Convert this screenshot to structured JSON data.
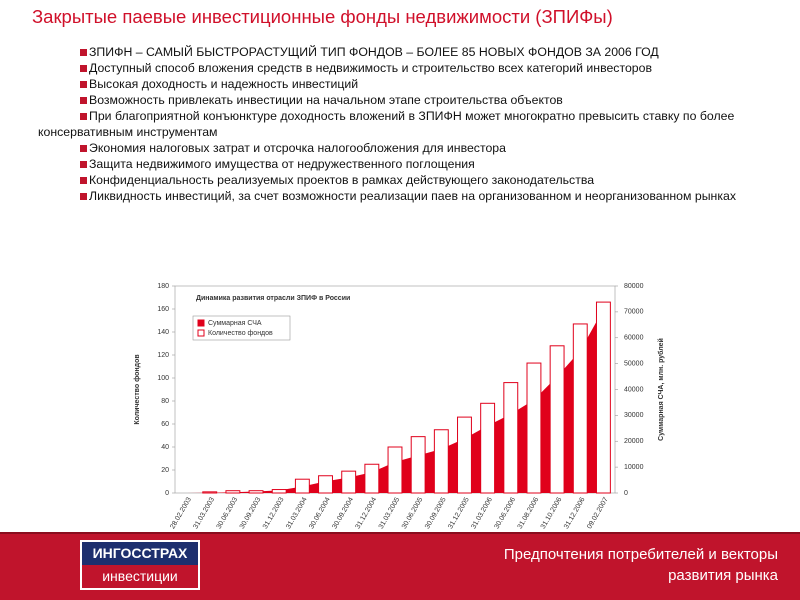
{
  "title": "Закрытые паевые инвестиционные фонды недвижимости (ЗПИФы)",
  "bullets": [
    "ЗПИФН – САМЫЙ БЫСТРОРАСТУЩИЙ ТИП ФОНДОВ – БОЛЕЕ 85 НОВЫХ ФОНДОВ ЗА 2006 ГОД",
    "Доступный способ вложения средств в недвижимость и строительство всех категорий инвесторов",
    "Высокая доходность и надежность инвестиций",
    "Возможность привлекать инвестиции на начальном этапе строительства объектов",
    "При благоприятной конъюнктуре доходность вложений в ЗПИФН может многократно превысить ставку по более консервативным инструментам",
    "Экономия налоговых затрат и отсрочка налогообложения для инвестора",
    "Защита недвижимого имущества от недружественного поглощения",
    "Конфиденциальность реализуемых проектов в рамках действующего законодательства",
    "Ликвидность инвестиций, за счет возможности реализации паев на организованном и неорганизованном рынках"
  ],
  "chart_data": {
    "type": "bar-area",
    "title": "Динамика развития отрасли ЗПИФ в России",
    "ylabel": "Количество фондов",
    "y2label": "Суммарная СЧА, млн. рублей",
    "categories": [
      "28.02.2003",
      "31.03.2003",
      "30.06.2003",
      "30.09.2003",
      "31.12.2003",
      "31.03.2004",
      "30.06.2004",
      "30.09.2004",
      "31.12.2004",
      "31.03.2005",
      "30.06.2005",
      "30.09.2005",
      "31.12.2005",
      "31.03.2006",
      "30.06.2006",
      "31.08.2006",
      "31.10.2006",
      "31.12.2006",
      "09.02.2007"
    ],
    "series": [
      {
        "name": "Суммарная СЧА",
        "color": "#e0001b",
        "axis": "y2",
        "kind": "area",
        "values": [
          0,
          100,
          300,
          600,
          1000,
          2500,
          4500,
          6000,
          8000,
          12000,
          14500,
          17000,
          21000,
          26000,
          30500,
          36000,
          45000,
          55000,
          71000
        ]
      },
      {
        "name": "Количество фондов",
        "color": "#e0001b",
        "kind": "bar",
        "values": [
          0,
          1,
          2,
          2,
          3,
          12,
          15,
          19,
          25,
          40,
          49,
          55,
          66,
          78,
          96,
          113,
          128,
          147,
          166
        ]
      }
    ],
    "ylim": [
      0,
      180
    ],
    "yticks": [
      0,
      20,
      40,
      60,
      80,
      100,
      120,
      140,
      160,
      180
    ],
    "y2lim": [
      0,
      80000
    ],
    "y2ticks": [
      0,
      10000,
      20000,
      30000,
      40000,
      50000,
      60000,
      70000,
      80000
    ]
  },
  "footer": {
    "logo_top": "ИНГОССТРАХ",
    "logo_bottom": "инвестиции",
    "lines": [
      "Предпочтения потребителей и векторы",
      "развития рынка"
    ]
  }
}
